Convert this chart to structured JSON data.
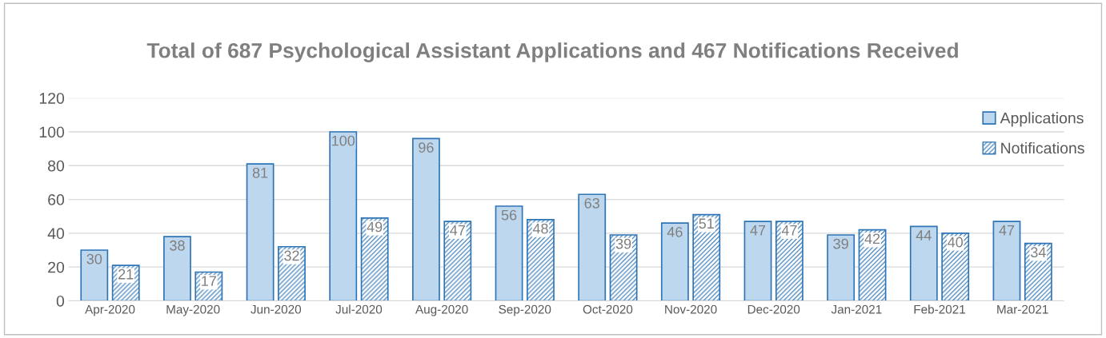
{
  "chart_data": {
    "type": "bar",
    "title": "Total of 687 Psychological Assistant Applications and 467 Notifications Received",
    "categories": [
      "Apr-2020",
      "May-2020",
      "Jun-2020",
      "Jul-2020",
      "Aug-2020",
      "Sep-2020",
      "Oct-2020",
      "Nov-2020",
      "Dec-2020",
      "Jan-2021",
      "Feb-2021",
      "Mar-2021"
    ],
    "series": [
      {
        "name": "Applications",
        "color": "#bdd7ee",
        "values": [
          30,
          38,
          81,
          100,
          96,
          56,
          63,
          46,
          47,
          39,
          44,
          47
        ]
      },
      {
        "name": "Notifications",
        "color": "#2e75b6",
        "values": [
          21,
          17,
          32,
          49,
          47,
          48,
          39,
          51,
          47,
          42,
          40,
          34
        ]
      }
    ],
    "ylim": [
      0,
      120
    ],
    "yticks": [
      0,
      20,
      40,
      60,
      80,
      100,
      120
    ],
    "grid": "y",
    "legend": "top right",
    "data_labels": true
  }
}
